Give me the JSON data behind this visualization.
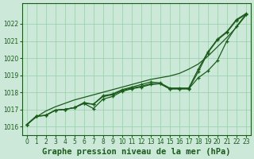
{
  "xlabel": "Graphe pression niveau de la mer (hPa)",
  "bg_color": "#cce8d8",
  "plot_bg_color": "#cce8d8",
  "grid_color": "#99ccaa",
  "line_color": "#1a5c1a",
  "hours": [
    0,
    1,
    2,
    3,
    4,
    5,
    6,
    7,
    8,
    9,
    10,
    11,
    12,
    13,
    14,
    15,
    16,
    17,
    18,
    19,
    20,
    21,
    22,
    23
  ],
  "line_smooth": [
    1016.1,
    1016.55,
    1016.9,
    1017.15,
    1017.35,
    1017.55,
    1017.7,
    1017.85,
    1018.0,
    1018.15,
    1018.3,
    1018.45,
    1018.6,
    1018.75,
    1018.85,
    1018.95,
    1019.1,
    1019.35,
    1019.65,
    1020.1,
    1020.65,
    1021.2,
    1021.8,
    1022.5
  ],
  "line_main": [
    1016.1,
    1016.6,
    1016.65,
    1016.95,
    1017.0,
    1017.1,
    1017.35,
    1017.3,
    1017.75,
    1017.85,
    1018.1,
    1018.25,
    1018.35,
    1018.5,
    1018.5,
    1018.2,
    1018.2,
    1018.2,
    1019.2,
    1020.3,
    1021.05,
    1021.5,
    1022.2,
    1022.55
  ],
  "line_dip": [
    1016.1,
    1016.6,
    1016.65,
    1016.95,
    1017.0,
    1017.1,
    1017.35,
    1017.05,
    1017.6,
    1017.75,
    1018.05,
    1018.2,
    1018.3,
    1018.45,
    1018.5,
    1018.2,
    1018.2,
    1018.2,
    1018.85,
    1019.25,
    1019.85,
    1021.0,
    1021.85,
    1022.55
  ],
  "line_upper": [
    1016.1,
    1016.6,
    1016.65,
    1016.95,
    1017.0,
    1017.1,
    1017.4,
    1017.3,
    1017.8,
    1017.9,
    1018.15,
    1018.3,
    1018.45,
    1018.6,
    1018.55,
    1018.25,
    1018.25,
    1018.25,
    1019.35,
    1020.35,
    1021.1,
    1021.55,
    1022.25,
    1022.6
  ],
  "ylim": [
    1015.5,
    1023.2
  ],
  "yticks": [
    1016,
    1017,
    1018,
    1019,
    1020,
    1021,
    1022
  ],
  "xticks": [
    0,
    1,
    2,
    3,
    4,
    5,
    6,
    7,
    8,
    9,
    10,
    11,
    12,
    13,
    14,
    15,
    16,
    17,
    18,
    19,
    20,
    21,
    22,
    23
  ],
  "tick_fontsize": 5.5,
  "xlabel_fontsize": 7.5
}
